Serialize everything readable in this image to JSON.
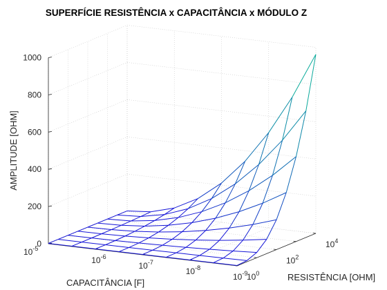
{
  "chart_data": {
    "type": "surface",
    "title": "SUPERFÍCIE RESISTÊNCIA x CAPACITÂNCIA x MÓDULO Z",
    "xlabel": "CAPACITÂNCIA [F]",
    "ylabel": "RESISTÊNCIA [OHM]",
    "zlabel": "AMPLITUDE [OHM]",
    "x_scale": "log",
    "y_scale": "log",
    "z_scale": "linear",
    "xlim": [
      1e-05,
      1e-09
    ],
    "ylim": [
      1,
      10000
    ],
    "zlim": [
      0,
      1000
    ],
    "x_ticks": [
      {
        "base": "10",
        "exp": "-5"
      },
      {
        "base": "10",
        "exp": "-6"
      },
      {
        "base": "10",
        "exp": "-7"
      },
      {
        "base": "10",
        "exp": "-8"
      },
      {
        "base": "10",
        "exp": "-9"
      }
    ],
    "y_ticks": [
      {
        "base": "10",
        "exp": "0"
      },
      {
        "base": "10",
        "exp": "2"
      },
      {
        "base": "10",
        "exp": "4"
      }
    ],
    "z_ticks": [
      "0",
      "200",
      "400",
      "600",
      "800",
      "1000"
    ],
    "grid": true,
    "colormap": "parula (blue to green by height)",
    "surface": {
      "capacitance": [
        1e-05,
        3.16e-06,
        1e-06,
        3.16e-07,
        1e-07,
        3.16e-08,
        1e-08,
        3.16e-09,
        1e-09
      ],
      "resistance": [
        1,
        3.16,
        10,
        31.6,
        100,
        316,
        1000,
        3162,
        10000
      ],
      "z_max": 960
    }
  }
}
